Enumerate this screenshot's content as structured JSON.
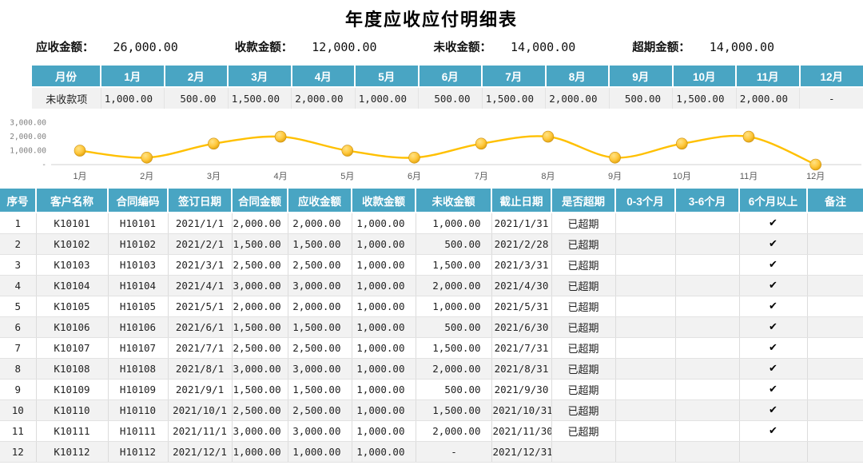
{
  "title": "年度应收应付明细表",
  "summary": [
    {
      "label": "应收金额：",
      "value": "26,000.00"
    },
    {
      "label": "收款金额：",
      "value": "12,000.00"
    },
    {
      "label": "未收金额：",
      "value": "14,000.00"
    },
    {
      "label": "超期金额：",
      "value": "14,000.00"
    }
  ],
  "month_table": {
    "corner_header": "月份",
    "months": [
      "1月",
      "2月",
      "3月",
      "4月",
      "5月",
      "6月",
      "7月",
      "8月",
      "9月",
      "10月",
      "11月",
      "12月"
    ],
    "row_label": "未收款项",
    "values": [
      "1,000.00",
      "500.00",
      "1,500.00",
      "2,000.00",
      "1,000.00",
      "500.00",
      "1,500.00",
      "2,000.00",
      "500.00",
      "1,500.00",
      "2,000.00",
      "-"
    ]
  },
  "chart_data": {
    "type": "line",
    "series_name": "未收款项",
    "categories": [
      "1月",
      "2月",
      "3月",
      "4月",
      "5月",
      "6月",
      "7月",
      "8月",
      "9月",
      "10月",
      "11月",
      "12月"
    ],
    "values": [
      1000,
      500,
      1500,
      2000,
      1000,
      500,
      1500,
      2000,
      500,
      1500,
      2000,
      0
    ],
    "ytick_labels": [
      "3,000.00",
      "2,000.00",
      "1,000.00",
      "-"
    ],
    "ytick_values": [
      3000,
      2000,
      1000,
      0
    ],
    "ylim": [
      0,
      3000
    ],
    "grid": false,
    "legend": "none",
    "smooth": true,
    "line_color": "#FFC000",
    "marker_fill": "#FFC83D",
    "marker_edge": "#C98F12",
    "axis_color": "#d0d0d0",
    "tick_text_color": "#808080",
    "xlabel_color": "#595959"
  },
  "detail_table": {
    "headers": [
      "序号",
      "客户名称",
      "合同编码",
      "签订日期",
      "合同金额",
      "应收金额",
      "收款金额",
      "未收金额",
      "截止日期",
      "是否超期",
      "0-3个月",
      "3-6个月",
      "6个月以上",
      "备注"
    ],
    "rows": [
      [
        "1",
        "K10101",
        "H10101",
        "2021/1/1",
        "2,000.00",
        "2,000.00",
        "1,000.00",
        "1,000.00",
        "2021/1/31",
        "已超期",
        "",
        "",
        "✔",
        ""
      ],
      [
        "2",
        "K10102",
        "H10102",
        "2021/2/1",
        "1,500.00",
        "1,500.00",
        "1,000.00",
        "500.00",
        "2021/2/28",
        "已超期",
        "",
        "",
        "✔",
        ""
      ],
      [
        "3",
        "K10103",
        "H10103",
        "2021/3/1",
        "2,500.00",
        "2,500.00",
        "1,000.00",
        "1,500.00",
        "2021/3/31",
        "已超期",
        "",
        "",
        "✔",
        ""
      ],
      [
        "4",
        "K10104",
        "H10104",
        "2021/4/1",
        "3,000.00",
        "3,000.00",
        "1,000.00",
        "2,000.00",
        "2021/4/30",
        "已超期",
        "",
        "",
        "✔",
        ""
      ],
      [
        "5",
        "K10105",
        "H10105",
        "2021/5/1",
        "2,000.00",
        "2,000.00",
        "1,000.00",
        "1,000.00",
        "2021/5/31",
        "已超期",
        "",
        "",
        "✔",
        ""
      ],
      [
        "6",
        "K10106",
        "H10106",
        "2021/6/1",
        "1,500.00",
        "1,500.00",
        "1,000.00",
        "500.00",
        "2021/6/30",
        "已超期",
        "",
        "",
        "✔",
        ""
      ],
      [
        "7",
        "K10107",
        "H10107",
        "2021/7/1",
        "2,500.00",
        "2,500.00",
        "1,000.00",
        "1,500.00",
        "2021/7/31",
        "已超期",
        "",
        "",
        "✔",
        ""
      ],
      [
        "8",
        "K10108",
        "H10108",
        "2021/8/1",
        "3,000.00",
        "3,000.00",
        "1,000.00",
        "2,000.00",
        "2021/8/31",
        "已超期",
        "",
        "",
        "✔",
        ""
      ],
      [
        "9",
        "K10109",
        "H10109",
        "2021/9/1",
        "1,500.00",
        "1,500.00",
        "1,000.00",
        "500.00",
        "2021/9/30",
        "已超期",
        "",
        "",
        "✔",
        ""
      ],
      [
        "10",
        "K10110",
        "H10110",
        "2021/10/1",
        "2,500.00",
        "2,500.00",
        "1,000.00",
        "1,500.00",
        "2021/10/31",
        "已超期",
        "",
        "",
        "✔",
        ""
      ],
      [
        "11",
        "K10111",
        "H10111",
        "2021/11/1",
        "3,000.00",
        "3,000.00",
        "1,000.00",
        "2,000.00",
        "2021/11/30",
        "已超期",
        "",
        "",
        "✔",
        ""
      ],
      [
        "12",
        "K10112",
        "H10112",
        "2021/12/1",
        "1,000.00",
        "1,000.00",
        "1,000.00",
        "-",
        "2021/12/31",
        "",
        "",
        "",
        "",
        ""
      ]
    ]
  },
  "colors": {
    "header_teal": "#49a5c3",
    "stripe_gray": "#f2f2f2",
    "line_gold": "#FFC000"
  }
}
